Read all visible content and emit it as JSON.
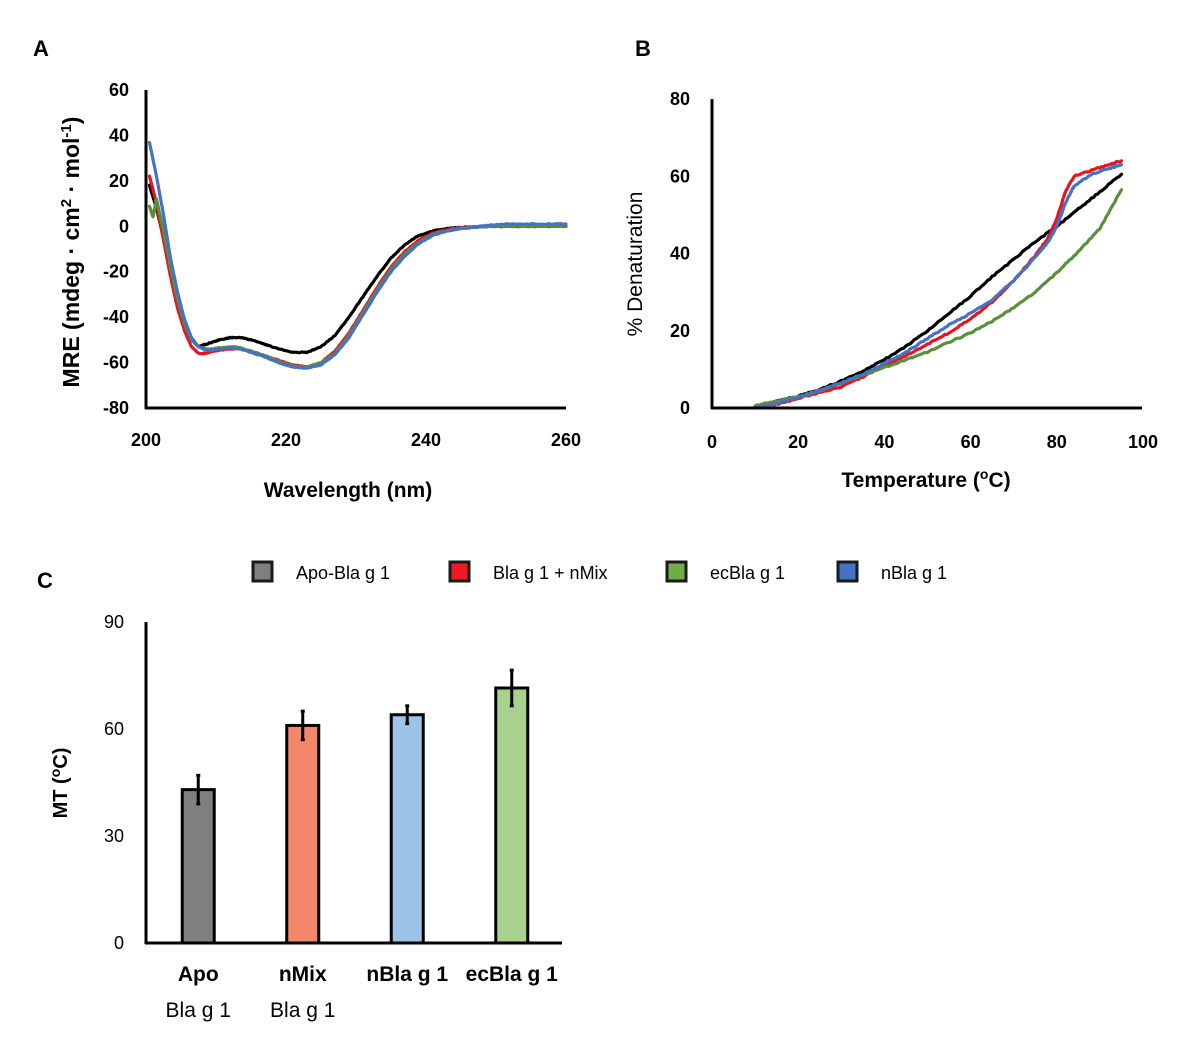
{
  "chart_data": [
    {
      "panel": "A",
      "type": "line",
      "title": "",
      "xlabel": "Wavelength (nm)",
      "ylabel": "MRE (mdeg · cm2 · mol-1)",
      "ylabel_parts": {
        "main": "MRE (mdeg · cm",
        "sup1": "2",
        "mid": " · mol",
        "sup2": "-1",
        "end": ")"
      },
      "xlim": [
        200,
        260
      ],
      "ylim": [
        -80,
        60
      ],
      "xticks": [
        200,
        220,
        240,
        260
      ],
      "yticks": [
        60,
        40,
        20,
        0,
        -20,
        -40,
        -60,
        -80
      ],
      "grid": false,
      "series": [
        {
          "name": "Apo-Bla g 1",
          "color": "#000000",
          "x": [
            200.5,
            201.5,
            202.5,
            203.5,
            204.5,
            205.5,
            206.5,
            207.5,
            208.5,
            209.5,
            210.5,
            212,
            213.5,
            215,
            217,
            219,
            221,
            223,
            225,
            227,
            229,
            231,
            233,
            235,
            237,
            239,
            241,
            243,
            245,
            247,
            249,
            252,
            256,
            260
          ],
          "y": [
            18,
            8,
            -5,
            -20,
            -33,
            -43,
            -50,
            -53,
            -52,
            -51,
            -50,
            -49,
            -49,
            -50,
            -52,
            -54,
            -55.5,
            -55.5,
            -53,
            -48,
            -40,
            -31,
            -22,
            -14,
            -8,
            -4,
            -2,
            -1,
            -0.5,
            -0.3,
            0,
            0,
            0,
            0
          ]
        },
        {
          "name": "Bla g 1 + nMix",
          "color": "#e8141e",
          "x": [
            200.5,
            201.5,
            202.5,
            203.5,
            204.5,
            205.5,
            206.5,
            207.5,
            208.5,
            209.5,
            210.5,
            212,
            213.5,
            215,
            217,
            219,
            221,
            223,
            225,
            227,
            229,
            231,
            233,
            235,
            237,
            239,
            241,
            243,
            245,
            247,
            249,
            252,
            256,
            260
          ],
          "y": [
            22,
            10,
            -6,
            -22,
            -36,
            -46,
            -53,
            -56,
            -56,
            -55,
            -54.5,
            -54,
            -54,
            -55,
            -57,
            -59,
            -61,
            -62,
            -60,
            -55,
            -47,
            -37,
            -27,
            -18,
            -11,
            -6,
            -3,
            -1.5,
            -0.5,
            -0.3,
            0,
            0,
            0,
            0
          ]
        },
        {
          "name": "ecBla g 1",
          "color": "#5b8f3b",
          "x": [
            200.5,
            201,
            201.5,
            202.5,
            203.5,
            204.5,
            205.5,
            206.5,
            207.5,
            208.5,
            209.5,
            210.5,
            212,
            213.5,
            215,
            217,
            219,
            221,
            223,
            225,
            227,
            229,
            231,
            233,
            235,
            237,
            239,
            241,
            243,
            245,
            247,
            249,
            252,
            256,
            260
          ],
          "y": [
            9,
            4,
            12,
            -2,
            -18,
            -32,
            -43,
            -50,
            -53,
            -54,
            -54,
            -53.5,
            -53,
            -53.5,
            -55,
            -57,
            -59.5,
            -61.5,
            -62,
            -60,
            -56,
            -48,
            -38,
            -28,
            -19,
            -12,
            -7,
            -3.5,
            -2,
            -1,
            -0.5,
            0,
            0,
            0,
            0
          ]
        },
        {
          "name": "nBla g 1",
          "color": "#4472c4",
          "x": [
            200.5,
            201.5,
            202.5,
            203.5,
            204.5,
            205.5,
            206.5,
            207.5,
            208.5,
            209.5,
            210.5,
            212,
            213.5,
            215,
            217,
            219,
            221,
            223,
            225,
            227,
            229,
            231,
            233,
            235,
            237,
            239,
            241,
            243,
            245,
            247,
            249,
            252,
            256,
            260
          ],
          "y": [
            37,
            22,
            5,
            -14,
            -29,
            -41,
            -49,
            -53,
            -54.5,
            -54.5,
            -54,
            -53.5,
            -54,
            -55.5,
            -57.5,
            -60,
            -62,
            -62.5,
            -61,
            -56.5,
            -49,
            -39,
            -29,
            -20,
            -13,
            -7.5,
            -4,
            -2,
            -1,
            -0.3,
            0.5,
            1,
            1,
            1
          ]
        }
      ]
    },
    {
      "panel": "B",
      "type": "line",
      "title": "",
      "xlabel": "Temperature (oC)",
      "xlabel_parts": {
        "main": "Temperature (",
        "sup": "o",
        "end": "C)"
      },
      "ylabel": "% Denaturation",
      "xlim": [
        0,
        100
      ],
      "ylim": [
        0,
        80
      ],
      "xticks": [
        0,
        20,
        40,
        60,
        80,
        100
      ],
      "yticks": [
        80,
        60,
        40,
        20,
        0
      ],
      "grid": false,
      "series": [
        {
          "name": "Apo-Bla g 1",
          "color": "#000000",
          "x": [
            10,
            15,
            20,
            25,
            30,
            35,
            40,
            45,
            50,
            55,
            60,
            65,
            70,
            75,
            80,
            85,
            90,
            95
          ],
          "y": [
            0.5,
            1.8,
            3,
            4.8,
            7,
            9.5,
            12.5,
            16,
            20,
            24.5,
            29,
            34,
            38.5,
            43,
            47,
            51.5,
            56,
            60.5
          ]
        },
        {
          "name": "Bla g 1 + nMix",
          "color": "#e8141e",
          "x": [
            10,
            15,
            20,
            25,
            30,
            35,
            40,
            45,
            50,
            55,
            60,
            65,
            70,
            75,
            78,
            80,
            82,
            84,
            88,
            92,
            95
          ],
          "y": [
            0,
            1,
            2.5,
            4,
            5.5,
            8,
            11,
            13.5,
            16.5,
            19.5,
            23,
            27.5,
            33,
            39.5,
            44,
            49,
            56,
            60,
            61.5,
            63,
            64
          ]
        },
        {
          "name": "ecBla g 1",
          "color": "#5b8f3b",
          "x": [
            10,
            15,
            20,
            25,
            30,
            35,
            40,
            45,
            50,
            55,
            60,
            65,
            70,
            75,
            80,
            85,
            90,
            95
          ],
          "y": [
            0.5,
            1.8,
            3,
            4.5,
            6.5,
            8.5,
            10.5,
            12.5,
            14.5,
            17,
            19.5,
            22.5,
            26,
            30,
            35,
            40.5,
            46.5,
            56.5
          ]
        },
        {
          "name": "nBla g 1",
          "color": "#4472c4",
          "x": [
            10,
            15,
            20,
            25,
            30,
            35,
            40,
            45,
            50,
            55,
            60,
            65,
            70,
            75,
            78,
            80,
            82,
            84,
            88,
            92,
            95
          ],
          "y": [
            0,
            1.2,
            2.8,
            4.5,
            6.5,
            8.8,
            11.5,
            14.5,
            18,
            21.5,
            24.5,
            28,
            33,
            39,
            43,
            47,
            53,
            57.5,
            60.5,
            62,
            63
          ]
        }
      ]
    },
    {
      "panel": "C",
      "type": "bar",
      "title": "",
      "xlabel": "",
      "ylabel": "MT (oC)",
      "ylabel_parts": {
        "main": "MT (",
        "sup": "o",
        "end": "C)"
      },
      "ylim": [
        0,
        90
      ],
      "yticks": [
        90,
        60,
        30,
        0
      ],
      "grid": false,
      "categories": [
        [
          "Apo",
          "Bla g 1"
        ],
        [
          "nMix",
          "Bla g 1"
        ],
        [
          "nBla g 1"
        ],
        [
          "ecBla g 1"
        ]
      ],
      "values": [
        43,
        61,
        64,
        71.5
      ],
      "errors": [
        4,
        4,
        2.5,
        5
      ],
      "colors": [
        "#7f7f7f",
        "#f4876a",
        "#9dc3e6",
        "#a9d18e"
      ]
    }
  ],
  "panel_labels": {
    "a": "A",
    "b": "B",
    "c": "C"
  },
  "legend": {
    "placement": "top-center",
    "items": [
      {
        "label": "Apo-Bla g 1",
        "color": "#7f7f7f"
      },
      {
        "label": "Bla g 1 + nMix",
        "color": "#ed1c24"
      },
      {
        "label": "ecBla g 1",
        "color": "#70ad47"
      },
      {
        "label": "nBla g 1",
        "color": "#4472c4"
      }
    ]
  }
}
